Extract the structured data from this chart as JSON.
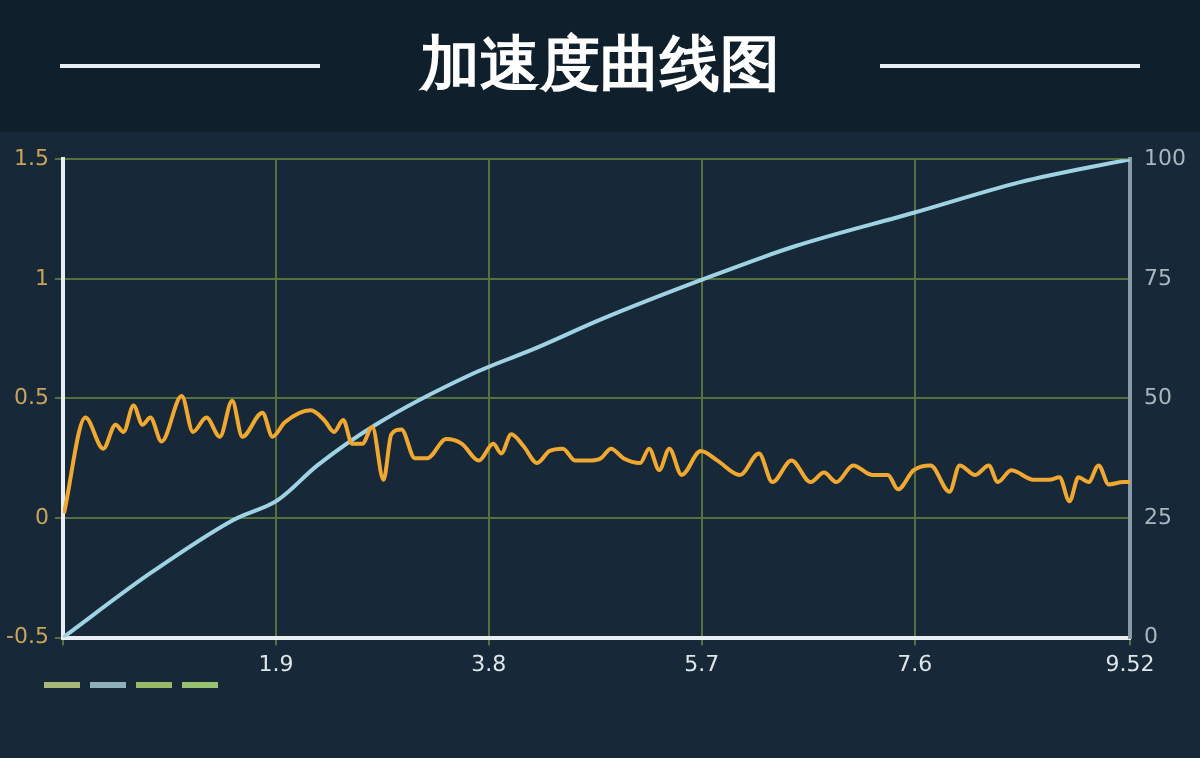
{
  "chart_data": {
    "type": "line",
    "title": "加速度曲线图",
    "xlim": [
      0,
      9.52
    ],
    "xticks": [
      {
        "value": 0,
        "label": null
      },
      1.9,
      3.8,
      5.7,
      7.6,
      9.52
    ],
    "ylim": [
      -0.5,
      1.5
    ],
    "yticks": [
      -0.5,
      0,
      0.5,
      1,
      1.5
    ],
    "y2lim": [
      0,
      100
    ],
    "y2ticks": [
      0,
      25,
      50,
      75,
      100
    ],
    "grid": true,
    "legend": false,
    "marker": "none",
    "line_style": "solid",
    "series": [
      {
        "color": "#f0a830",
        "x": [
          0.01,
          0.2,
          0.36,
          0.47,
          0.54,
          0.63,
          0.71,
          0.78,
          0.88,
          1.06,
          1.16,
          1.28,
          1.4,
          1.51,
          1.6,
          1.78,
          1.87,
          1.98,
          2.21,
          2.33,
          2.42,
          2.5,
          2.58,
          2.67,
          2.76,
          2.86,
          2.93,
          3.02,
          3.14,
          3.25,
          3.42,
          3.56,
          3.71,
          3.84,
          3.91,
          4.0,
          4.11,
          4.23,
          4.34,
          4.46,
          4.57,
          4.69,
          4.8,
          4.89,
          5.0,
          5.15,
          5.23,
          5.32,
          5.41,
          5.52,
          5.69,
          5.84,
          6.04,
          6.21,
          6.33,
          6.5,
          6.67,
          6.79,
          6.9,
          7.05,
          7.22,
          7.36,
          7.45,
          7.59,
          7.74,
          7.91,
          8.0,
          8.14,
          8.26,
          8.34,
          8.46,
          8.66,
          8.8,
          8.89,
          8.98,
          9.06,
          9.15,
          9.24,
          9.33,
          9.46,
          9.52
        ],
        "values": [
          0.02,
          0.42,
          0.29,
          0.39,
          0.36,
          0.47,
          0.39,
          0.42,
          0.32,
          0.51,
          0.36,
          0.42,
          0.34,
          0.49,
          0.34,
          0.44,
          0.34,
          0.4,
          0.45,
          0.41,
          0.36,
          0.41,
          0.31,
          0.31,
          0.38,
          0.16,
          0.35,
          0.37,
          0.25,
          0.25,
          0.33,
          0.31,
          0.24,
          0.31,
          0.27,
          0.35,
          0.3,
          0.23,
          0.28,
          0.29,
          0.24,
          0.24,
          0.25,
          0.29,
          0.25,
          0.23,
          0.29,
          0.2,
          0.29,
          0.18,
          0.28,
          0.24,
          0.18,
          0.27,
          0.15,
          0.24,
          0.15,
          0.19,
          0.15,
          0.22,
          0.18,
          0.18,
          0.12,
          0.2,
          0.22,
          0.11,
          0.22,
          0.18,
          0.22,
          0.15,
          0.2,
          0.16,
          0.16,
          0.17,
          0.07,
          0.17,
          0.15,
          0.22,
          0.14,
          0.15,
          0.15
        ]
      },
      {
        "color": "#9fd3e4",
        "axis": "y2",
        "x": [
          0,
          0.77,
          1.52,
          1.92,
          2.27,
          2.79,
          3.65,
          4.23,
          4.8,
          5.69,
          6.53,
          7.59,
          8.54,
          9.52
        ],
        "values": [
          0,
          13.3,
          24.6,
          28.8,
          36,
          44.5,
          55.1,
          60.6,
          66.5,
          74.7,
          81.8,
          88.8,
          95.2,
          100
        ]
      }
    ]
  }
}
